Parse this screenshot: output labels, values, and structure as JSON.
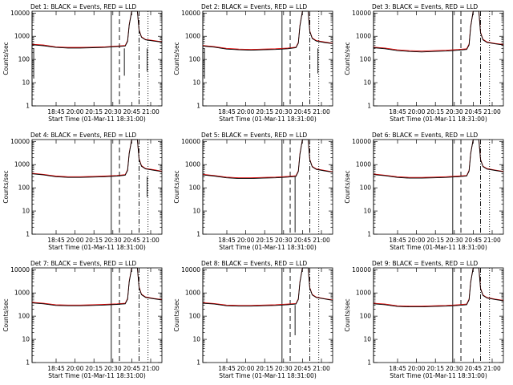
{
  "chart_data": [
    {
      "type": "line",
      "title": "Det 1: BLACK = Events, RED = LLD",
      "xlabel": "Start Time (01-Mar-11 18:31:00)",
      "ylabel": "Counts/sec",
      "yscale": "log",
      "ylim": [
        1,
        12000
      ],
      "xlim": [
        "18:31",
        "21:10"
      ],
      "yticks": [
        "1",
        "10",
        "100",
        "1000",
        "10000"
      ],
      "xticks": [
        "18:45",
        "20:00",
        "20:15",
        "20:30",
        "20:45",
        "21:00"
      ],
      "events": {
        "x": [
          "18:31",
          "18:45",
          "19:00",
          "19:15",
          "19:30",
          "19:45",
          "20:00",
          "20:15",
          "20:25",
          "20:28",
          "20:30",
          "20:33",
          "20:35",
          "20:40",
          "20:42",
          "20:45",
          "20:50",
          "21:00",
          "21:10"
        ],
        "y": [
          430,
          390,
          330,
          310,
          310,
          320,
          330,
          360,
          380,
          600,
          3000,
          12000,
          12000,
          12000,
          1800,
          900,
          700,
          620,
          560
        ]
      },
      "lld": {
        "x": [
          "18:31",
          "18:45",
          "19:00",
          "19:15",
          "19:30",
          "19:45",
          "20:00",
          "20:15",
          "20:25",
          "20:28",
          "20:30",
          "20:33",
          "20:35",
          "20:40",
          "20:42",
          "20:45",
          "20:50",
          "21:00",
          "21:10"
        ],
        "y": [
          450,
          420,
          350,
          330,
          330,
          340,
          350,
          380,
          400,
          650,
          3200,
          12000,
          12000,
          12000,
          1900,
          950,
          730,
          650,
          580
        ]
      },
      "dips": [
        {
          "x": "18:33",
          "y": 15
        },
        {
          "x": "20:24",
          "y": 20
        },
        {
          "x": "20:52",
          "y": 30
        }
      ]
    },
    {
      "type": "line",
      "title": "Det 2: BLACK = Events, RED = LLD",
      "xlabel": "Start Time (01-Mar-11 18:31:00)",
      "ylabel": "Counts/sec",
      "yscale": "log",
      "ylim": [
        1,
        12000
      ],
      "xlim": [
        "18:31",
        "21:10"
      ],
      "yticks": [
        "1",
        "10",
        "100",
        "1000",
        "10000"
      ],
      "xticks": [
        "18:45",
        "20:00",
        "20:15",
        "20:30",
        "20:45",
        "21:00"
      ],
      "events": {
        "x": [
          "18:31",
          "18:45",
          "19:00",
          "19:15",
          "19:30",
          "19:45",
          "20:00",
          "20:15",
          "20:25",
          "20:28",
          "20:30",
          "20:33",
          "20:35",
          "20:40",
          "20:42",
          "20:45",
          "20:50",
          "21:00",
          "21:10"
        ],
        "y": [
          380,
          340,
          280,
          260,
          250,
          260,
          270,
          290,
          320,
          500,
          2800,
          12000,
          12000,
          12000,
          1600,
          800,
          620,
          540,
          480
        ]
      },
      "lld": {
        "x": [
          "18:31",
          "18:45",
          "19:00",
          "19:15",
          "19:30",
          "19:45",
          "20:00",
          "20:15",
          "20:25",
          "20:28",
          "20:30",
          "20:33",
          "20:35",
          "20:40",
          "20:42",
          "20:45",
          "20:50",
          "21:00",
          "21:10"
        ],
        "y": [
          400,
          360,
          300,
          280,
          270,
          280,
          290,
          310,
          340,
          540,
          3000,
          12000,
          12000,
          12000,
          1700,
          850,
          650,
          570,
          500
        ]
      },
      "dips": [
        {
          "x": "18:33",
          "y": 15
        },
        {
          "x": "20:52",
          "y": 25
        }
      ]
    },
    {
      "type": "line",
      "title": "Det 3: BLACK = Events, RED = LLD",
      "xlabel": "Start Time (01-Mar-11 18:31:00)",
      "ylabel": "Counts/sec",
      "yscale": "log",
      "ylim": [
        1,
        12000
      ],
      "xlim": [
        "18:31",
        "21:10"
      ],
      "yticks": [
        "1",
        "10",
        "100",
        "1000",
        "10000"
      ],
      "xticks": [
        "18:45",
        "20:00",
        "20:15",
        "20:30",
        "20:45",
        "21:00"
      ],
      "events": {
        "x": [
          "18:31",
          "18:45",
          "19:00",
          "19:15",
          "19:30",
          "19:45",
          "20:00",
          "20:15",
          "20:25",
          "20:28",
          "20:30",
          "20:33",
          "20:35",
          "20:40",
          "20:42",
          "20:45",
          "20:50",
          "21:00",
          "21:10"
        ],
        "y": [
          320,
          290,
          240,
          220,
          210,
          220,
          230,
          250,
          270,
          420,
          2500,
          12000,
          12000,
          12000,
          1400,
          700,
          540,
          470,
          420
        ]
      },
      "lld": {
        "x": [
          "18:31",
          "18:45",
          "19:00",
          "19:15",
          "19:30",
          "19:45",
          "20:00",
          "20:15",
          "20:25",
          "20:28",
          "20:30",
          "20:33",
          "20:35",
          "20:40",
          "20:42",
          "20:45",
          "20:50",
          "21:00",
          "21:10"
        ],
        "y": [
          340,
          310,
          260,
          240,
          230,
          240,
          250,
          270,
          290,
          460,
          2700,
          12000,
          12000,
          12000,
          1500,
          740,
          570,
          490,
          440
        ]
      },
      "dips": []
    },
    {
      "type": "line",
      "title": "Det 4: BLACK = Events, RED = LLD",
      "xlabel": "Start Time (01-Mar-11 18:31:00)",
      "ylabel": "Counts/sec",
      "yscale": "log",
      "ylim": [
        1,
        12000
      ],
      "xlim": [
        "18:31",
        "21:10"
      ],
      "yticks": [
        "1",
        "10",
        "100",
        "1000",
        "10000"
      ],
      "xticks": [
        "18:45",
        "20:00",
        "20:15",
        "20:30",
        "20:45",
        "21:00"
      ],
      "events": {
        "x": [
          "18:31",
          "18:45",
          "19:00",
          "19:15",
          "19:30",
          "19:45",
          "20:00",
          "20:15",
          "20:25",
          "20:28",
          "20:30",
          "20:33",
          "20:35",
          "20:40",
          "20:42",
          "20:45",
          "20:50",
          "21:00",
          "21:10"
        ],
        "y": [
          400,
          360,
          300,
          280,
          280,
          290,
          300,
          320,
          350,
          560,
          3000,
          12000,
          12000,
          12000,
          1700,
          850,
          650,
          570,
          500
        ]
      },
      "lld": {
        "x": [
          "18:31",
          "18:45",
          "19:00",
          "19:15",
          "19:30",
          "19:45",
          "20:00",
          "20:15",
          "20:25",
          "20:28",
          "20:30",
          "20:33",
          "20:35",
          "20:40",
          "20:42",
          "20:45",
          "20:50",
          "21:00",
          "21:10"
        ],
        "y": [
          420,
          380,
          320,
          300,
          300,
          310,
          320,
          340,
          370,
          600,
          3200,
          12000,
          12000,
          12000,
          1800,
          900,
          680,
          600,
          520
        ]
      },
      "dips": [
        {
          "x": "20:52",
          "y": 40
        }
      ]
    },
    {
      "type": "line",
      "title": "Det 5: BLACK = Events, RED = LLD",
      "xlabel": "Start Time (01-Mar-11 18:31:00)",
      "ylabel": "Counts/sec",
      "yscale": "log",
      "ylim": [
        1,
        12000
      ],
      "xlim": [
        "18:31",
        "21:10"
      ],
      "yticks": [
        "1",
        "10",
        "100",
        "1000",
        "10000"
      ],
      "xticks": [
        "18:45",
        "20:00",
        "20:15",
        "20:30",
        "20:45",
        "21:00"
      ],
      "events": {
        "x": [
          "18:31",
          "18:45",
          "19:00",
          "19:15",
          "19:30",
          "19:45",
          "20:00",
          "20:15",
          "20:25",
          "20:28",
          "20:30",
          "20:33",
          "20:35",
          "20:40",
          "20:42",
          "20:45",
          "20:50",
          "21:00",
          "21:10"
        ],
        "y": [
          360,
          320,
          270,
          250,
          250,
          260,
          270,
          290,
          310,
          500,
          2800,
          12000,
          12000,
          12000,
          1600,
          800,
          620,
          540,
          470
        ]
      },
      "lld": {
        "x": [
          "18:31",
          "18:45",
          "19:00",
          "19:15",
          "19:30",
          "19:45",
          "20:00",
          "20:15",
          "20:25",
          "20:28",
          "20:30",
          "20:33",
          "20:35",
          "20:40",
          "20:42",
          "20:45",
          "20:50",
          "21:00",
          "21:10"
        ],
        "y": [
          380,
          340,
          290,
          270,
          270,
          280,
          290,
          310,
          330,
          540,
          3000,
          12000,
          12000,
          12000,
          1700,
          840,
          650,
          560,
          490
        ]
      },
      "dips": [
        {
          "x": "20:24",
          "y": 1.2
        }
      ]
    },
    {
      "type": "line",
      "title": "Det 6: BLACK = Events, RED = LLD",
      "xlabel": "Start Time (01-Mar-11 18:31:00)",
      "ylabel": "Counts/sec",
      "yscale": "log",
      "ylim": [
        1,
        12000
      ],
      "xlim": [
        "18:31",
        "21:10"
      ],
      "yticks": [
        "1",
        "10",
        "100",
        "1000",
        "10000"
      ],
      "xticks": [
        "18:45",
        "20:00",
        "20:15",
        "20:30",
        "20:45",
        "21:00"
      ],
      "events": {
        "x": [
          "18:31",
          "18:45",
          "19:00",
          "19:15",
          "19:30",
          "19:45",
          "20:00",
          "20:15",
          "20:25",
          "20:28",
          "20:30",
          "20:33",
          "20:35",
          "20:40",
          "20:42",
          "20:45",
          "20:50",
          "21:00",
          "21:10"
        ],
        "y": [
          370,
          330,
          280,
          260,
          260,
          270,
          280,
          300,
          320,
          520,
          2900,
          12000,
          12000,
          12000,
          1600,
          820,
          640,
          560,
          490
        ]
      },
      "lld": {
        "x": [
          "18:31",
          "18:45",
          "19:00",
          "19:15",
          "19:30",
          "19:45",
          "20:00",
          "20:15",
          "20:25",
          "20:28",
          "20:30",
          "20:33",
          "20:35",
          "20:40",
          "20:42",
          "20:45",
          "20:50",
          "21:00",
          "21:10"
        ],
        "y": [
          390,
          350,
          300,
          280,
          280,
          290,
          300,
          320,
          340,
          560,
          3100,
          12000,
          12000,
          12000,
          1700,
          860,
          670,
          580,
          510
        ]
      },
      "dips": []
    },
    {
      "type": "line",
      "title": "Det 7: BLACK = Events, RED = LLD",
      "xlabel": "Start Time (01-Mar-11 18:31:00)",
      "ylabel": "Counts/sec",
      "yscale": "log",
      "ylim": [
        1,
        12000
      ],
      "xlim": [
        "18:31",
        "21:10"
      ],
      "yticks": [
        "1",
        "10",
        "100",
        "1000",
        "10000"
      ],
      "xticks": [
        "18:45",
        "20:00",
        "20:15",
        "20:30",
        "20:45",
        "21:00"
      ],
      "events": {
        "x": [
          "18:31",
          "18:45",
          "19:00",
          "19:15",
          "19:30",
          "19:45",
          "20:00",
          "20:15",
          "20:25",
          "20:28",
          "20:30",
          "20:33",
          "20:35",
          "20:40",
          "20:42",
          "20:45",
          "20:50",
          "21:00",
          "21:10"
        ],
        "y": [
          370,
          340,
          290,
          280,
          280,
          290,
          300,
          320,
          340,
          540,
          3000,
          12000,
          12000,
          12000,
          1700,
          840,
          640,
          560,
          500
        ]
      },
      "lld": {
        "x": [
          "18:31",
          "18:45",
          "19:00",
          "19:15",
          "19:30",
          "19:45",
          "20:00",
          "20:15",
          "20:25",
          "20:28",
          "20:30",
          "20:33",
          "20:35",
          "20:40",
          "20:42",
          "20:45",
          "20:50",
          "21:00",
          "21:10"
        ],
        "y": [
          390,
          360,
          310,
          300,
          300,
          310,
          320,
          340,
          360,
          580,
          3200,
          12000,
          12000,
          12000,
          1800,
          880,
          670,
          580,
          520
        ]
      },
      "dips": []
    },
    {
      "type": "line",
      "title": "Det 8: BLACK = Events, RED = LLD",
      "xlabel": "Start Time (01-Mar-11 18:31:00)",
      "ylabel": "Counts/sec",
      "yscale": "log",
      "ylim": [
        1,
        12000
      ],
      "xlim": [
        "18:31",
        "21:10"
      ],
      "yticks": [
        "1",
        "10",
        "100",
        "1000",
        "10000"
      ],
      "xticks": [
        "18:45",
        "20:00",
        "20:15",
        "20:30",
        "20:45",
        "21:00"
      ],
      "events": {
        "x": [
          "18:31",
          "18:45",
          "19:00",
          "19:15",
          "19:30",
          "19:45",
          "20:00",
          "20:15",
          "20:25",
          "20:28",
          "20:30",
          "20:33",
          "20:35",
          "20:40",
          "20:42",
          "20:45",
          "20:50",
          "21:00",
          "21:10"
        ],
        "y": [
          360,
          330,
          280,
          270,
          270,
          280,
          290,
          310,
          330,
          520,
          2900,
          12000,
          12000,
          12000,
          1600,
          820,
          630,
          550,
          480
        ]
      },
      "lld": {
        "x": [
          "18:31",
          "18:45",
          "19:00",
          "19:15",
          "19:30",
          "19:45",
          "20:00",
          "20:15",
          "20:25",
          "20:28",
          "20:30",
          "20:33",
          "20:35",
          "20:40",
          "20:42",
          "20:45",
          "20:50",
          "21:00",
          "21:10"
        ],
        "y": [
          380,
          350,
          300,
          290,
          290,
          300,
          310,
          330,
          350,
          560,
          3100,
          12000,
          12000,
          12000,
          1700,
          860,
          660,
          570,
          500
        ]
      },
      "dips": [
        {
          "x": "20:24",
          "y": 15
        }
      ]
    },
    {
      "type": "line",
      "title": "Det 9: BLACK = Events, RED = LLD",
      "xlabel": "Start Time (01-Mar-11 18:31:00)",
      "ylabel": "Counts/sec",
      "yscale": "log",
      "ylim": [
        1,
        12000
      ],
      "xlim": [
        "18:31",
        "21:10"
      ],
      "yticks": [
        "1",
        "10",
        "100",
        "1000",
        "10000"
      ],
      "xticks": [
        "18:45",
        "20:00",
        "20:15",
        "20:30",
        "20:45",
        "21:00"
      ],
      "events": {
        "x": [
          "18:31",
          "18:45",
          "19:00",
          "19:15",
          "19:30",
          "19:45",
          "20:00",
          "20:15",
          "20:25",
          "20:28",
          "20:30",
          "20:33",
          "20:35",
          "20:40",
          "20:42",
          "20:45",
          "20:50",
          "21:00",
          "21:10"
        ],
        "y": [
          340,
          310,
          260,
          250,
          250,
          260,
          270,
          290,
          310,
          500,
          2800,
          12000,
          12000,
          12000,
          1500,
          780,
          600,
          520,
          460
        ]
      },
      "lld": {
        "x": [
          "18:31",
          "18:45",
          "19:00",
          "19:15",
          "19:30",
          "19:45",
          "20:00",
          "20:15",
          "20:25",
          "20:28",
          "20:30",
          "20:33",
          "20:35",
          "20:40",
          "20:42",
          "20:45",
          "20:50",
          "21:00",
          "21:10"
        ],
        "y": [
          360,
          330,
          280,
          270,
          270,
          280,
          290,
          310,
          330,
          540,
          3000,
          12000,
          12000,
          12000,
          1600,
          820,
          630,
          540,
          480
        ]
      },
      "dips": []
    }
  ],
  "markers": [
    {
      "time": "18:31",
      "style": "solid"
    },
    {
      "time": "20:08",
      "style": "solid"
    },
    {
      "time": "20:18",
      "style": "dashed"
    },
    {
      "time": "20:42",
      "style": "dashdot"
    },
    {
      "time": "20:53",
      "style": "dotted"
    }
  ],
  "colors": {
    "events": "#000000",
    "lld": "#e00000"
  }
}
